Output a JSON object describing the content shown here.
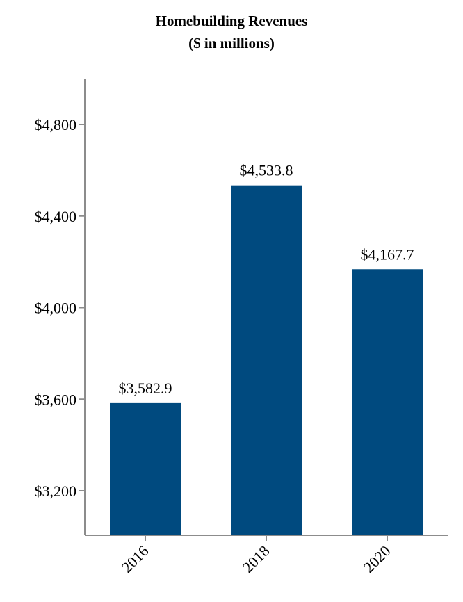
{
  "chart_data": {
    "type": "bar",
    "title": "Homebuilding Revenues",
    "subtitle": "($ in millions)",
    "categories": [
      "2016",
      "2018",
      "2020"
    ],
    "values": [
      3582.9,
      4533.8,
      4167.7
    ],
    "value_labels": [
      "$3,582.9",
      "$4,533.8",
      "$4,167.7"
    ],
    "yticks": [
      3200,
      3600,
      4000,
      4400,
      4800
    ],
    "ytick_labels": [
      "$3,200",
      "$3,600",
      "$4,000",
      "$4,400",
      "$4,800"
    ],
    "ylim": [
      3000,
      5000
    ],
    "xlabel": "",
    "ylabel": "",
    "grid": false,
    "bar_color": "#004a7f",
    "axis_color": "#8c8c8c"
  }
}
